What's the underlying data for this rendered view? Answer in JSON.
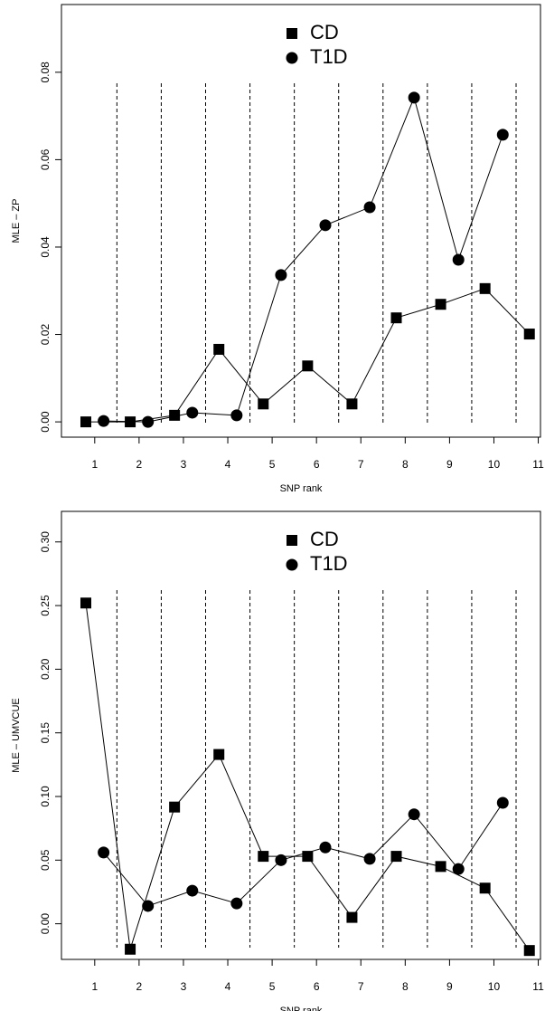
{
  "chart_data": [
    {
      "type": "line",
      "xlabel": "SNP rank",
      "ylabel": "MLE – ZP",
      "xlim": [
        0.25,
        11.05
      ],
      "ylim": [
        -0.0035,
        0.0955
      ],
      "xticks": [
        1,
        2,
        3,
        4,
        5,
        6,
        7,
        8,
        9,
        10,
        11
      ],
      "yticks": [
        {
          "value": 0,
          "label": "0.00"
        },
        {
          "value": 0.02,
          "label": "0.02"
        },
        {
          "value": 0.04,
          "label": "0.04"
        },
        {
          "value": 0.06,
          "label": "0.06"
        },
        {
          "value": 0.08,
          "label": "0.08"
        }
      ],
      "vlines": [
        1.5,
        2.5,
        3.5,
        4.5,
        5.5,
        6.5,
        7.5,
        8.5,
        9.5,
        10.5
      ],
      "series": [
        {
          "name": "CD",
          "marker": "square",
          "color": "#000000",
          "x": [
            0.8,
            1.8,
            2.8,
            3.8,
            4.8,
            5.8,
            6.8,
            7.8,
            8.8,
            9.8,
            10.8
          ],
          "values": [
            0,
            0,
            0.0015,
            0.0166,
            0.0041,
            0.0128,
            0.0041,
            0.0238,
            0.0269,
            0.0305,
            0.0201
          ]
        },
        {
          "name": "T1D",
          "marker": "circle",
          "color": "#000000",
          "x": [
            1.2,
            2.2,
            3.2,
            4.2,
            5.2,
            6.2,
            7.2,
            8.2,
            9.2,
            10.2
          ],
          "values": [
            0.0002,
            0,
            0.0021,
            0.0015,
            0.0336,
            0.045,
            0.0491,
            0.0742,
            0.0371,
            0.0657
          ]
        }
      ]
    },
    {
      "type": "line",
      "xlabel": "SNP rank",
      "ylabel": "MLE – UMVCUE",
      "xlim": [
        0.25,
        11.05
      ],
      "ylim": [
        -0.028,
        0.324
      ],
      "xticks": [
        1,
        2,
        3,
        4,
        5,
        6,
        7,
        8,
        9,
        10,
        11
      ],
      "yticks": [
        {
          "value": 0,
          "label": "0.00"
        },
        {
          "value": 0.05,
          "label": "0.05"
        },
        {
          "value": 0.1,
          "label": "0.10"
        },
        {
          "value": 0.15,
          "label": "0.15"
        },
        {
          "value": 0.2,
          "label": "0.20"
        },
        {
          "value": 0.25,
          "label": "0.25"
        },
        {
          "value": 0.3,
          "label": "0.30"
        }
      ],
      "vlines": [
        1.5,
        2.5,
        3.5,
        4.5,
        5.5,
        6.5,
        7.5,
        8.5,
        9.5,
        10.5
      ],
      "series": [
        {
          "name": "CD",
          "marker": "square",
          "color": "#000000",
          "x": [
            0.8,
            1.8,
            2.8,
            3.8,
            4.8,
            5.8,
            6.8,
            7.8,
            8.8,
            9.8,
            10.8
          ],
          "values": [
            0.252,
            -0.02,
            0.0917,
            0.133,
            0.053,
            0.053,
            0.005,
            0.053,
            0.045,
            0.028,
            -0.021
          ]
        },
        {
          "name": "T1D",
          "marker": "circle",
          "color": "#000000",
          "x": [
            1.2,
            2.2,
            3.2,
            4.2,
            5.2,
            6.2,
            7.2,
            8.2,
            9.2,
            10.2
          ],
          "values": [
            0.056,
            0.014,
            0.026,
            0.016,
            0.05,
            0.06,
            0.051,
            0.086,
            0.043,
            0.095
          ]
        }
      ]
    }
  ]
}
